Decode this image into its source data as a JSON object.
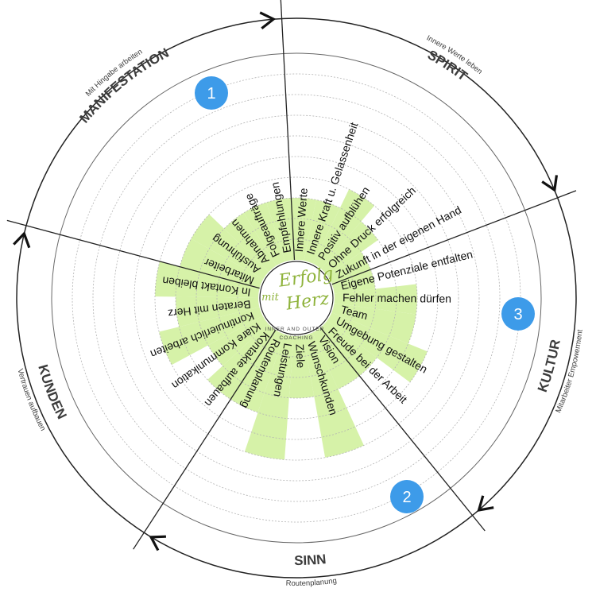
{
  "wheel": {
    "level_max": 10,
    "fill_color": "#d6f2a8",
    "ring_color": "#222222",
    "grid_color": "#b3b3b3",
    "badge_color": "#3d9be9",
    "logo_color": "#8fb33c",
    "segments": [
      {
        "label": "Innere Werte",
        "value": 3
      },
      {
        "label": "Innere Kraft u. Gelassenheit",
        "value": 3
      },
      {
        "label": "Positiv aufblühen",
        "value": 4
      },
      {
        "label": "Ohne Druck erfolgreich",
        "value": 3
      },
      {
        "label": "Zukunft in der eigenen Hand",
        "value": 2
      },
      {
        "label": "Eigene Potenziale entfalten",
        "value": 2
      },
      {
        "label": "Fehler machen dürfen",
        "value": 4
      },
      {
        "label": "Team",
        "value": 4
      },
      {
        "label": "Umgebung gestalten",
        "value": 5
      },
      {
        "label": "Freude bei der Arbeit",
        "value": 3
      },
      {
        "label": "Vision",
        "value": 3
      },
      {
        "label": "Wunschkunden",
        "value": 6
      },
      {
        "label": "Ziele",
        "value": 3
      },
      {
        "label": "Leistungen",
        "value": 6
      },
      {
        "label": "Routenplanung",
        "value": 4
      },
      {
        "label": "Kontakte aufbauen",
        "value": 4
      },
      {
        "label": "Klare Kommunikation",
        "value": 3
      },
      {
        "label": "Kontinuierlich arbeiten",
        "value": 5
      },
      {
        "label": "Beraten mit Herz",
        "value": 4
      },
      {
        "label": "In Kontakt bleiben",
        "value": 5
      },
      {
        "label": "Mitarbeiter",
        "value": 4
      },
      {
        "label": "Ausführung",
        "value": 4
      },
      {
        "label": "Abnahmen",
        "value": 3
      },
      {
        "label": "Folgeaufträge",
        "value": 3
      },
      {
        "label": "Empfehlungen",
        "value": 3
      }
    ],
    "sections": [
      {
        "title": "SPIRIT",
        "subtitle": "Innere Werte leben"
      },
      {
        "title": "KULTUR",
        "subtitle": "Mitarbeiter Empowerment"
      },
      {
        "title": "SINN",
        "subtitle": "Routenplanung"
      },
      {
        "title": "KUNDEN",
        "subtitle": "Vertrauen aufbauen"
      },
      {
        "title": "MANIFESTATION",
        "subtitle": "Mit Hingabe arbeiten"
      }
    ],
    "badges": [
      "1",
      "2",
      "3"
    ],
    "logo": {
      "script_line1": "Erfolg",
      "script_mit": "mit",
      "script_line2": "Herz",
      "subtitle_line1": "INNER AND OUTER",
      "subtitle_line2": "COACHING"
    }
  }
}
